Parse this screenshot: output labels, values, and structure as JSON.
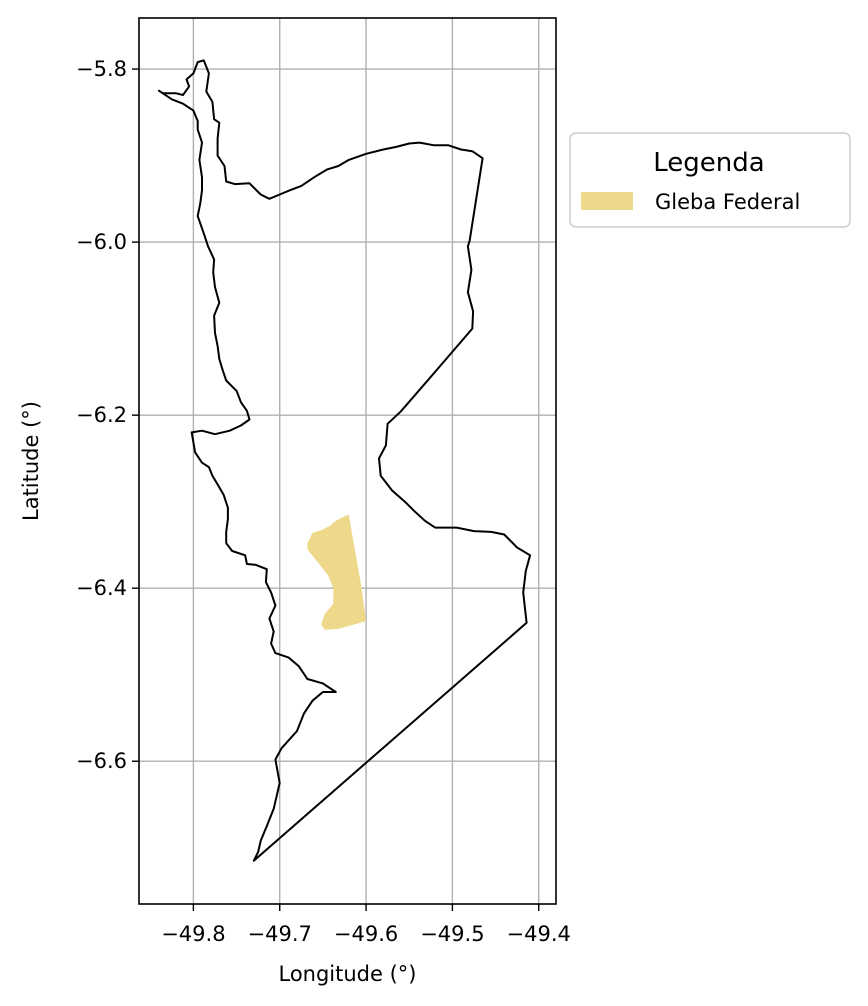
{
  "chart_data": {
    "type": "map",
    "xlabel": "Longitude (°)",
    "ylabel": "Latitude (°)",
    "xlim": [
      -49.863,
      -49.38
    ],
    "ylim": [
      -6.765,
      -5.741
    ],
    "xticks": [
      -49.8,
      -49.7,
      -49.6,
      -49.5,
      -49.4
    ],
    "xtick_labels": [
      "−49.8",
      "−49.7",
      "−49.6",
      "−49.5",
      "−49.4"
    ],
    "yticks": [
      -5.8,
      -6.0,
      -6.2,
      -6.4,
      -6.6
    ],
    "ytick_labels": [
      "−5.8",
      "−6.0",
      "−6.2",
      "−6.4",
      "−6.6"
    ],
    "grid": true,
    "legend": {
      "title": "Legenda",
      "placement": "outside-right",
      "entries": [
        {
          "label": "Gleba Federal",
          "color": "#EED88A"
        }
      ]
    },
    "boundary": {
      "stroke": "#000000",
      "points": [
        [
          -49.84,
          -5.825
        ],
        [
          -49.835,
          -5.828
        ],
        [
          -49.82,
          -5.828
        ],
        [
          -49.812,
          -5.83
        ],
        [
          -49.805,
          -5.82
        ],
        [
          -49.808,
          -5.812
        ],
        [
          -49.8,
          -5.805
        ],
        [
          -49.795,
          -5.792
        ],
        [
          -49.788,
          -5.79
        ],
        [
          -49.782,
          -5.805
        ],
        [
          -49.785,
          -5.826
        ],
        [
          -49.778,
          -5.838
        ],
        [
          -49.776,
          -5.858
        ],
        [
          -49.77,
          -5.862
        ],
        [
          -49.772,
          -5.88
        ],
        [
          -49.772,
          -5.9
        ],
        [
          -49.764,
          -5.912
        ],
        [
          -49.762,
          -5.93
        ],
        [
          -49.752,
          -5.933
        ],
        [
          -49.735,
          -5.932
        ],
        [
          -49.722,
          -5.945
        ],
        [
          -49.712,
          -5.95
        ],
        [
          -49.7,
          -5.945
        ],
        [
          -49.688,
          -5.94
        ],
        [
          -49.675,
          -5.935
        ],
        [
          -49.66,
          -5.925
        ],
        [
          -49.645,
          -5.916
        ],
        [
          -49.632,
          -5.912
        ],
        [
          -49.62,
          -5.905
        ],
        [
          -49.6,
          -5.898
        ],
        [
          -49.58,
          -5.893
        ],
        [
          -49.565,
          -5.89
        ],
        [
          -49.55,
          -5.886
        ],
        [
          -49.538,
          -5.885
        ],
        [
          -49.522,
          -5.888
        ],
        [
          -49.505,
          -5.888
        ],
        [
          -49.49,
          -5.893
        ],
        [
          -49.477,
          -5.895
        ],
        [
          -49.465,
          -5.903
        ],
        [
          -49.48,
          -5.998
        ],
        [
          -49.482,
          -6.005
        ],
        [
          -49.478,
          -6.032
        ],
        [
          -49.482,
          -6.058
        ],
        [
          -49.476,
          -6.08
        ],
        [
          -49.477,
          -6.1
        ],
        [
          -49.52,
          -6.15
        ],
        [
          -49.56,
          -6.196
        ],
        [
          -49.575,
          -6.21
        ],
        [
          -49.577,
          -6.235
        ],
        [
          -49.585,
          -6.25
        ],
        [
          -49.583,
          -6.27
        ],
        [
          -49.57,
          -6.287
        ],
        [
          -49.555,
          -6.3
        ],
        [
          -49.545,
          -6.31
        ],
        [
          -49.532,
          -6.322
        ],
        [
          -49.52,
          -6.33
        ],
        [
          -49.495,
          -6.33
        ],
        [
          -49.475,
          -6.334
        ],
        [
          -49.455,
          -6.335
        ],
        [
          -49.44,
          -6.338
        ],
        [
          -49.425,
          -6.353
        ],
        [
          -49.41,
          -6.362
        ],
        [
          -49.415,
          -6.38
        ],
        [
          -49.418,
          -6.405
        ],
        [
          -49.414,
          -6.44
        ],
        [
          -49.73,
          -6.715
        ],
        [
          -49.725,
          -6.705
        ],
        [
          -49.722,
          -6.692
        ],
        [
          -49.715,
          -6.675
        ],
        [
          -49.707,
          -6.655
        ],
        [
          -49.7,
          -6.625
        ],
        [
          -49.705,
          -6.598
        ],
        [
          -49.698,
          -6.585
        ],
        [
          -49.68,
          -6.565
        ],
        [
          -49.672,
          -6.545
        ],
        [
          -49.662,
          -6.53
        ],
        [
          -49.65,
          -6.52
        ],
        [
          -49.635,
          -6.52
        ],
        [
          -49.65,
          -6.51
        ],
        [
          -49.668,
          -6.505
        ],
        [
          -49.678,
          -6.49
        ],
        [
          -49.69,
          -6.48
        ],
        [
          -49.705,
          -6.475
        ],
        [
          -49.71,
          -6.464
        ],
        [
          -49.707,
          -6.45
        ],
        [
          -49.712,
          -6.435
        ],
        [
          -49.705,
          -6.42
        ],
        [
          -49.71,
          -6.405
        ],
        [
          -49.716,
          -6.393
        ],
        [
          -49.715,
          -6.378
        ],
        [
          -49.728,
          -6.373
        ],
        [
          -49.738,
          -6.372
        ],
        [
          -49.74,
          -6.362
        ],
        [
          -49.755,
          -6.357
        ],
        [
          -49.762,
          -6.348
        ],
        [
          -49.762,
          -6.335
        ],
        [
          -49.76,
          -6.32
        ],
        [
          -49.76,
          -6.307
        ],
        [
          -49.765,
          -6.292
        ],
        [
          -49.772,
          -6.28
        ],
        [
          -49.778,
          -6.27
        ],
        [
          -49.782,
          -6.26
        ],
        [
          -49.79,
          -6.255
        ],
        [
          -49.798,
          -6.243
        ],
        [
          -49.802,
          -6.22
        ],
        [
          -49.79,
          -6.218
        ],
        [
          -49.775,
          -6.222
        ],
        [
          -49.758,
          -6.218
        ],
        [
          -49.745,
          -6.212
        ],
        [
          -49.735,
          -6.205
        ],
        [
          -49.738,
          -6.195
        ],
        [
          -49.745,
          -6.185
        ],
        [
          -49.75,
          -6.172
        ],
        [
          -49.762,
          -6.16
        ],
        [
          -49.766,
          -6.148
        ],
        [
          -49.77,
          -6.135
        ],
        [
          -49.772,
          -6.12
        ],
        [
          -49.775,
          -6.105
        ],
        [
          -49.776,
          -6.085
        ],
        [
          -49.77,
          -6.07
        ],
        [
          -49.775,
          -6.052
        ],
        [
          -49.777,
          -6.035
        ],
        [
          -49.776,
          -6.02
        ],
        [
          -49.783,
          -6.005
        ],
        [
          -49.788,
          -5.99
        ],
        [
          -49.795,
          -5.97
        ],
        [
          -49.792,
          -5.955
        ],
        [
          -49.79,
          -5.94
        ],
        [
          -49.79,
          -5.925
        ],
        [
          -49.793,
          -5.905
        ],
        [
          -49.79,
          -5.885
        ],
        [
          -49.795,
          -5.87
        ],
        [
          -49.795,
          -5.86
        ],
        [
          -49.8,
          -5.848
        ],
        [
          -49.812,
          -5.84
        ],
        [
          -49.825,
          -5.835
        ],
        [
          -49.84,
          -5.825
        ]
      ]
    },
    "gleba_federal": {
      "fill": "#EED88A",
      "points": [
        [
          -49.668,
          -6.348
        ],
        [
          -49.662,
          -6.336
        ],
        [
          -49.652,
          -6.333
        ],
        [
          -49.642,
          -6.328
        ],
        [
          -49.635,
          -6.322
        ],
        [
          -49.625,
          -6.317
        ],
        [
          -49.62,
          -6.315
        ],
        [
          -49.614,
          -6.35
        ],
        [
          -49.606,
          -6.395
        ],
        [
          -49.6,
          -6.438
        ],
        [
          -49.632,
          -6.447
        ],
        [
          -49.648,
          -6.448
        ],
        [
          -49.652,
          -6.442
        ],
        [
          -49.648,
          -6.43
        ],
        [
          -49.638,
          -6.418
        ],
        [
          -49.638,
          -6.4
        ],
        [
          -49.644,
          -6.385
        ],
        [
          -49.652,
          -6.375
        ],
        [
          -49.66,
          -6.365
        ],
        [
          -49.668,
          -6.355
        ],
        [
          -49.668,
          -6.348
        ]
      ]
    }
  }
}
